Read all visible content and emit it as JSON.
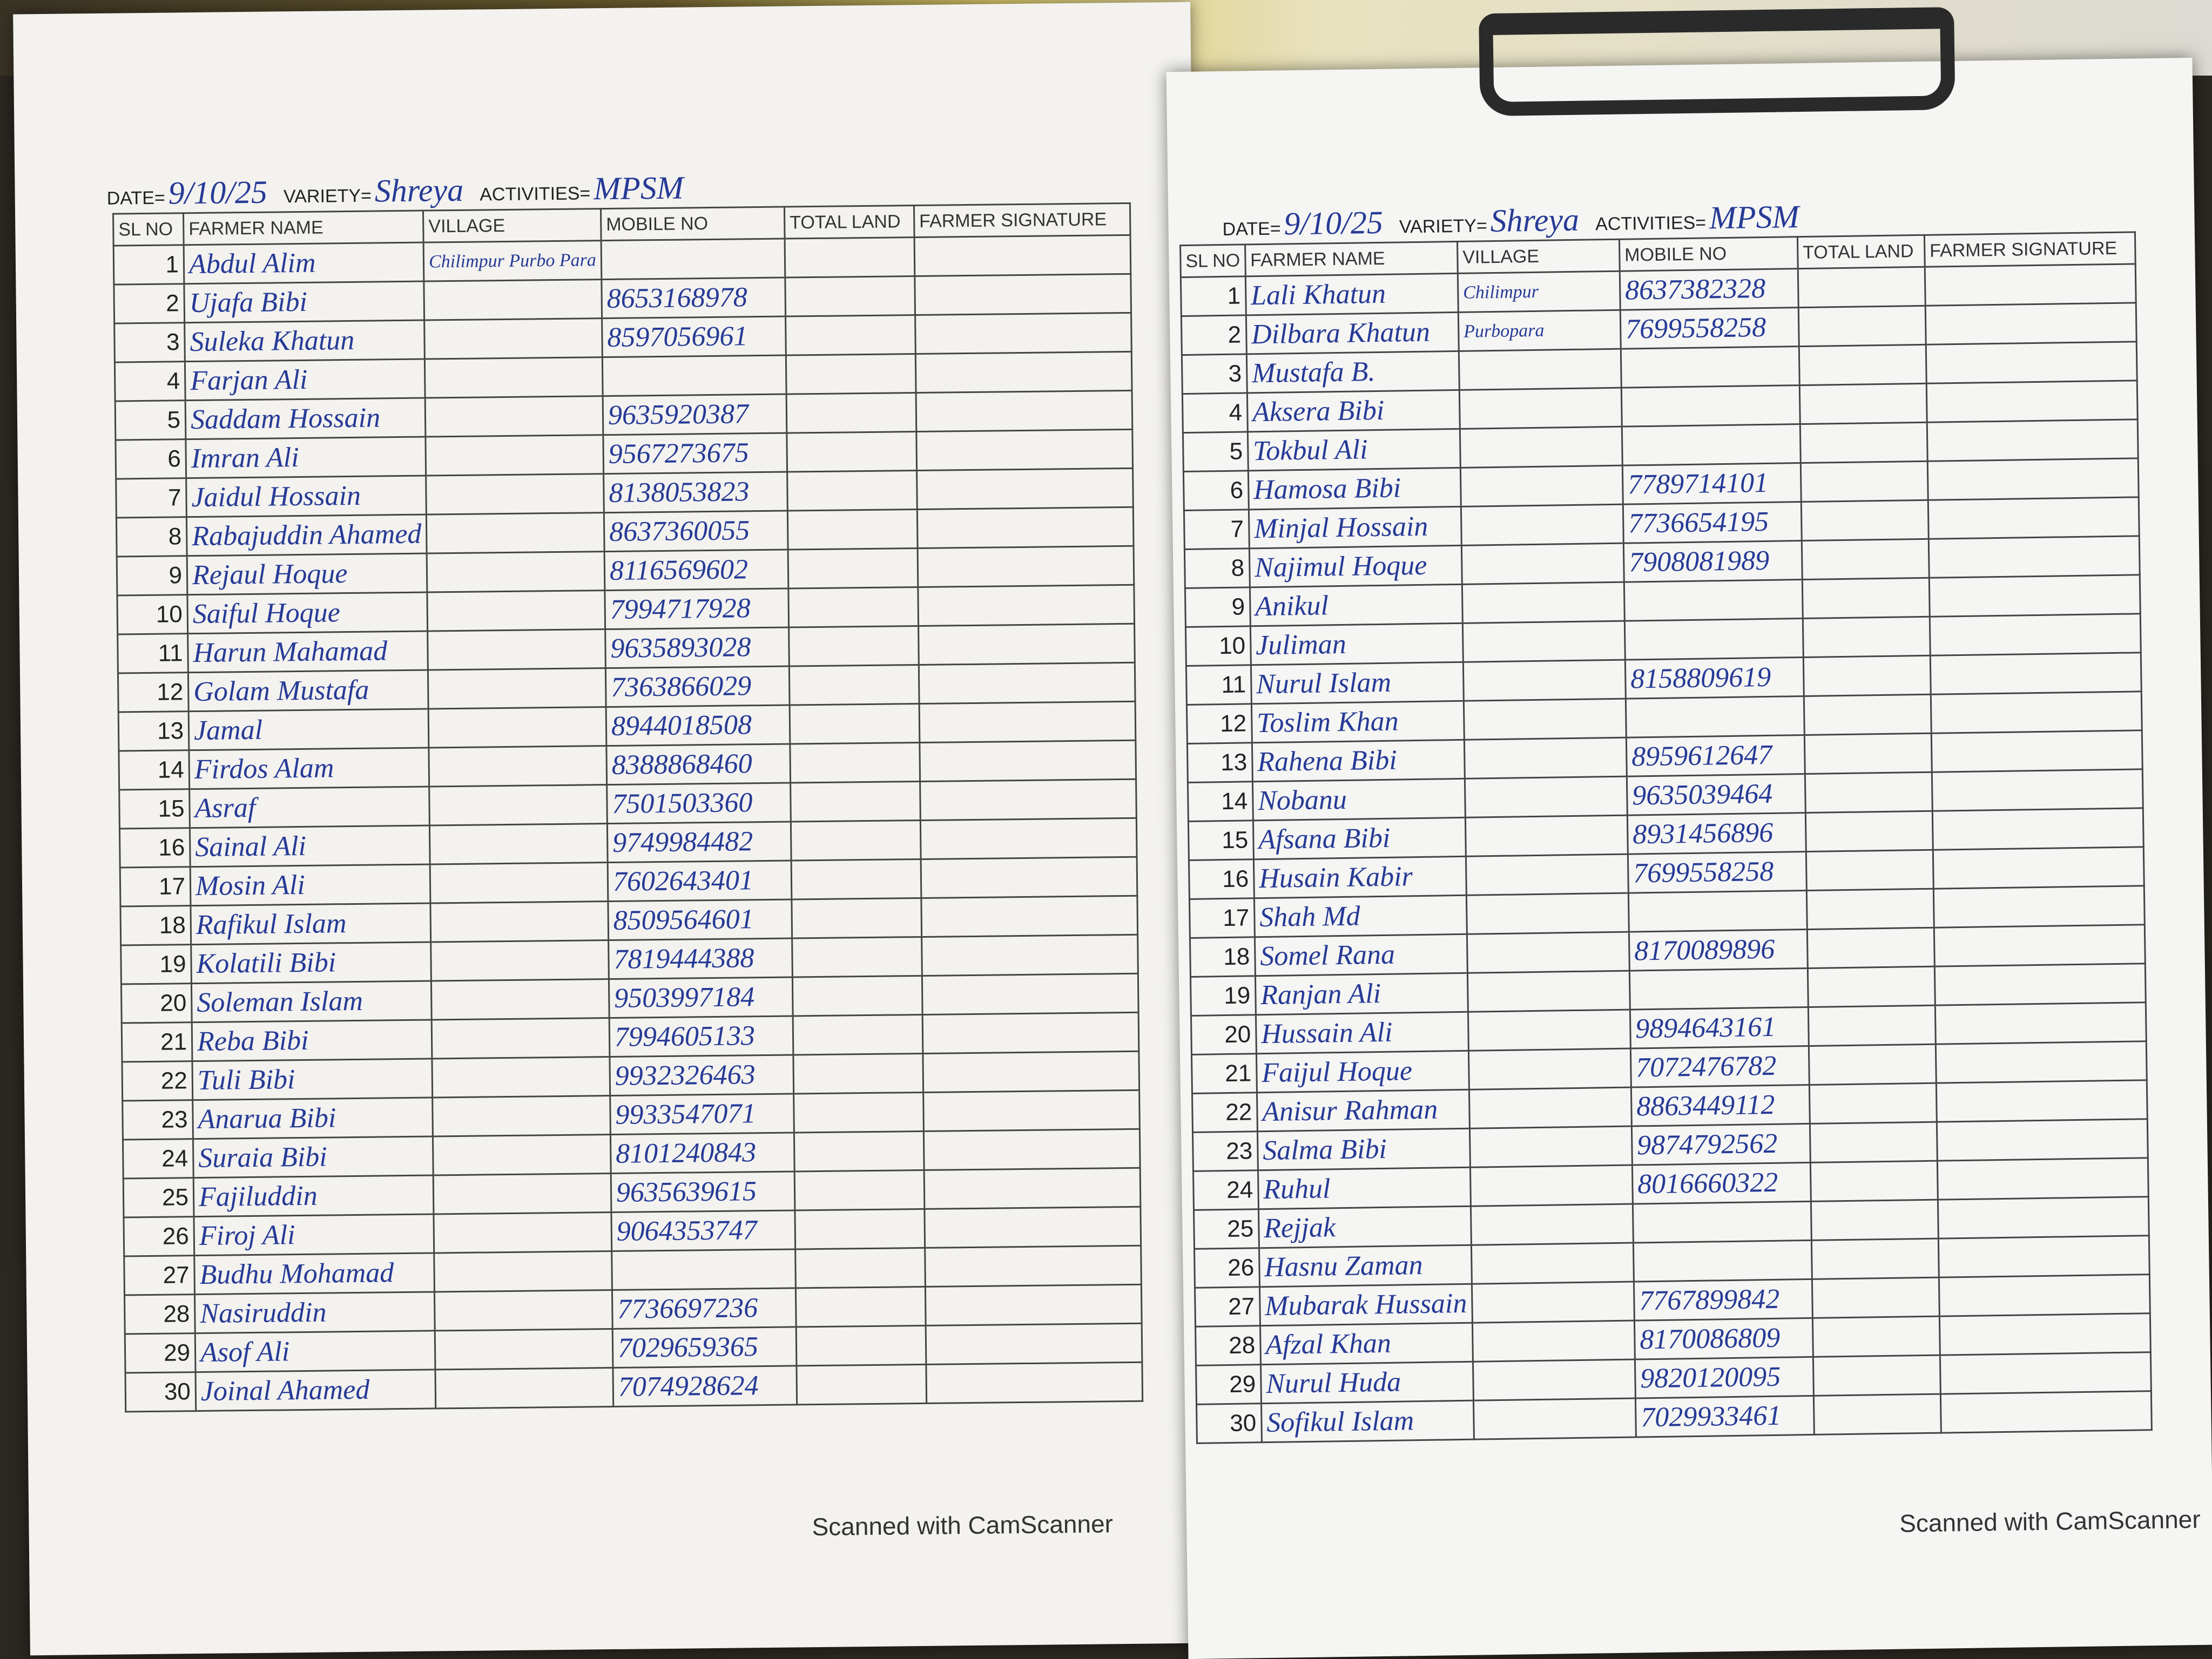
{
  "sheets": [
    {
      "date_label": "DATE=",
      "date": "9/10/25",
      "variety_label": "VARIETY=",
      "variety": "Shreya",
      "activities_label": "ACTIVITIES=",
      "activities": "MPSM",
      "columns": [
        "SL NO",
        "FARMER NAME",
        "VILLAGE",
        "MOBILE NO",
        "TOTAL LAND",
        "FARMER SIGNATURE"
      ],
      "rows": [
        {
          "sl": 1,
          "name": "Abdul Alim",
          "village": "Chilimpur Purbo Para"
        },
        {
          "sl": 2,
          "name": "Ujafa Bibi",
          "mobile": "8653168978"
        },
        {
          "sl": 3,
          "name": "Suleka Khatun",
          "mobile": "8597056961"
        },
        {
          "sl": 4,
          "name": "Farjan Ali"
        },
        {
          "sl": 5,
          "name": "Saddam Hossain",
          "mobile": "9635920387"
        },
        {
          "sl": 6,
          "name": "Imran Ali",
          "mobile": "9567273675"
        },
        {
          "sl": 7,
          "name": "Jaidul Hossain",
          "mobile": "8138053823"
        },
        {
          "sl": 8,
          "name": "Rabajuddin Ahamed",
          "mobile": "8637360055"
        },
        {
          "sl": 9,
          "name": "Rejaul Hoque",
          "mobile": "8116569602"
        },
        {
          "sl": 10,
          "name": "Saiful Hoque",
          "mobile": "7994717928"
        },
        {
          "sl": 11,
          "name": "Harun Mahamad",
          "mobile": "9635893028"
        },
        {
          "sl": 12,
          "name": "Golam Mustafa",
          "mobile": "7363866029"
        },
        {
          "sl": 13,
          "name": "Jamal",
          "mobile": "8944018508"
        },
        {
          "sl": 14,
          "name": "Firdos Alam",
          "mobile": "8388868460"
        },
        {
          "sl": 15,
          "name": "Asraf",
          "mobile": "7501503360"
        },
        {
          "sl": 16,
          "name": "Sainal Ali",
          "mobile": "9749984482"
        },
        {
          "sl": 17,
          "name": "Mosin Ali",
          "mobile": "7602643401"
        },
        {
          "sl": 18,
          "name": "Rafikul Islam",
          "mobile": "8509564601"
        },
        {
          "sl": 19,
          "name": "Kolatili Bibi",
          "mobile": "7819444388"
        },
        {
          "sl": 20,
          "name": "Soleman Islam",
          "mobile": "9503997184"
        },
        {
          "sl": 21,
          "name": "Reba Bibi",
          "mobile": "7994605133"
        },
        {
          "sl": 22,
          "name": "Tuli Bibi",
          "mobile": "9932326463"
        },
        {
          "sl": 23,
          "name": "Anarua Bibi",
          "mobile": "9933547071"
        },
        {
          "sl": 24,
          "name": "Suraia Bibi",
          "mobile": "8101240843"
        },
        {
          "sl": 25,
          "name": "Fajiluddin",
          "mobile": "9635639615"
        },
        {
          "sl": 26,
          "name": "Firoj Ali",
          "mobile": "9064353747"
        },
        {
          "sl": 27,
          "name": "Budhu Mohamad"
        },
        {
          "sl": 28,
          "name": "Nasiruddin",
          "mobile": "7736697236"
        },
        {
          "sl": 29,
          "name": "Asof Ali",
          "mobile": "7029659365"
        },
        {
          "sl": 30,
          "name": "Joinal Ahamed",
          "mobile": "7074928624"
        }
      ],
      "footer": "Scanned with CamScanner"
    },
    {
      "date_label": "DATE=",
      "date": "9/10/25",
      "variety_label": "VARIETY=",
      "variety": "Shreya",
      "activities_label": "ACTIVITIES=",
      "activities": "MPSM",
      "columns": [
        "SL NO",
        "FARMER NAME",
        "VILLAGE",
        "MOBILE NO",
        "TOTAL LAND",
        "FARMER SIGNATURE"
      ],
      "rows": [
        {
          "sl": 1,
          "name": "Lali Khatun",
          "village": "Chilimpur",
          "mobile": "8637382328"
        },
        {
          "sl": 2,
          "name": "Dilbara Khatun",
          "village": "Purbopara",
          "mobile": "7699558258"
        },
        {
          "sl": 3,
          "name": "Mustafa B."
        },
        {
          "sl": 4,
          "name": "Aksera Bibi"
        },
        {
          "sl": 5,
          "name": "Tokbul Ali"
        },
        {
          "sl": 6,
          "name": "Hamosa Bibi",
          "mobile": "7789714101"
        },
        {
          "sl": 7,
          "name": "Minjal Hossain",
          "mobile": "7736654195"
        },
        {
          "sl": 8,
          "name": "Najimul Hoque",
          "mobile": "7908081989"
        },
        {
          "sl": 9,
          "name": "Anikul"
        },
        {
          "sl": 10,
          "name": "Juliman"
        },
        {
          "sl": 11,
          "name": "Nurul Islam",
          "mobile": "8158809619"
        },
        {
          "sl": 12,
          "name": "Toslim Khan"
        },
        {
          "sl": 13,
          "name": "Rahena Bibi",
          "mobile": "8959612647"
        },
        {
          "sl": 14,
          "name": "Nobanu",
          "mobile": "9635039464"
        },
        {
          "sl": 15,
          "name": "Afsana Bibi",
          "mobile": "8931456896"
        },
        {
          "sl": 16,
          "name": "Husain Kabir",
          "mobile": "7699558258"
        },
        {
          "sl": 17,
          "name": "Shah Md"
        },
        {
          "sl": 18,
          "name": "Somel Rana",
          "mobile": "8170089896"
        },
        {
          "sl": 19,
          "name": "Ranjan Ali"
        },
        {
          "sl": 20,
          "name": "Hussain Ali",
          "mobile": "9894643161"
        },
        {
          "sl": 21,
          "name": "Faijul Hoque",
          "mobile": "7072476782"
        },
        {
          "sl": 22,
          "name": "Anisur Rahman",
          "mobile": "8863449112"
        },
        {
          "sl": 23,
          "name": "Salma Bibi",
          "mobile": "9874792562"
        },
        {
          "sl": 24,
          "name": "Ruhul",
          "mobile": "8016660322"
        },
        {
          "sl": 25,
          "name": "Rejjak"
        },
        {
          "sl": 26,
          "name": "Hasnu Zaman"
        },
        {
          "sl": 27,
          "name": "Mubarak Hussain",
          "mobile": "7767899842"
        },
        {
          "sl": 28,
          "name": "Afzal Khan",
          "mobile": "8170086809"
        },
        {
          "sl": 29,
          "name": "Nurul Huda",
          "mobile": "9820120095"
        },
        {
          "sl": 30,
          "name": "Sofikul Islam",
          "mobile": "7029933461"
        }
      ],
      "footer": "Scanned with CamScanner"
    }
  ]
}
